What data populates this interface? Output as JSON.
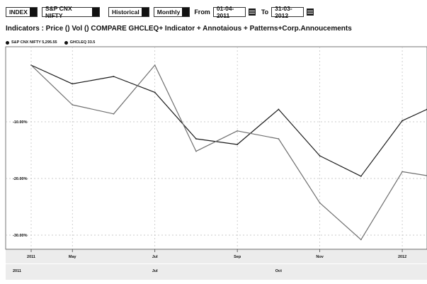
{
  "toolbar": {
    "type_value": "INDEX",
    "symbol_value": "S&P CNX NIFTY",
    "mode_value": "Historical",
    "period_value": "Monthly",
    "from_label": "From",
    "from_date": "01-04-2011",
    "to_label": "To",
    "to_date": "31-03-2012",
    "calendar_icon": "calendar-icon",
    "dropdown_icon": "dropdown-icon"
  },
  "indicators_text": "Indicators : Price () Vol () COMPARE GHCLEQ+ Indicator + Annotaious + Patterns+Corp.Annoucements",
  "legend": [
    {
      "label": "S&P CNX NIFTY 5,295.55"
    },
    {
      "label": "GHCLEQ 33.5"
    }
  ],
  "chart_data": {
    "type": "line",
    "y_ticks": [
      {
        "value": -10,
        "label": "-10.00%"
      },
      {
        "value": -20,
        "label": "-20.00%"
      },
      {
        "value": -30,
        "label": "-30.00%"
      }
    ],
    "ylim": [
      -32.5,
      2.5
    ],
    "x_ticks": [
      {
        "index": 0,
        "label": "2011"
      },
      {
        "index": 1,
        "label": "May"
      },
      {
        "index": 3,
        "label": "Jul"
      },
      {
        "index": 5,
        "label": "Sep"
      },
      {
        "index": 7,
        "label": "Nov"
      },
      {
        "index": 9,
        "label": "2012"
      }
    ],
    "x_ticks_lower": [
      {
        "index": 0,
        "label": "2011"
      },
      {
        "index": 3,
        "label": "Jul"
      },
      {
        "index": 6,
        "label": "Oct"
      }
    ],
    "xlim": [
      0,
      9.6
    ],
    "grid": true,
    "series": [
      {
        "name": "S&P CNX NIFTY 5,295.55",
        "color": "#1a1a1a",
        "x": [
          0,
          1,
          2,
          3,
          4,
          5,
          6,
          7,
          8,
          9,
          9.6
        ],
        "values": [
          0,
          -3.3,
          -2.0,
          -4.8,
          -13.0,
          -14.0,
          -7.8,
          -16.0,
          -19.6,
          -9.8,
          -7.8
        ]
      },
      {
        "name": "GHCLEQ 33.5",
        "color": "#6f6f6f",
        "x": [
          0,
          1,
          2,
          3,
          4,
          5,
          6,
          7,
          8,
          9,
          9.6
        ],
        "values": [
          0,
          -7.0,
          -8.6,
          0,
          -15.2,
          -11.6,
          -13.0,
          -24.3,
          -30.8,
          -18.8,
          -19.5
        ]
      }
    ]
  }
}
